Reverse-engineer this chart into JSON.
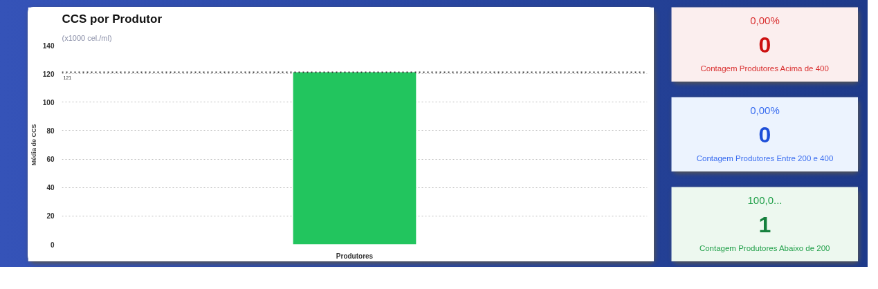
{
  "chart_data": [
    {
      "type": "bar",
      "title": "CCS por Produtor",
      "subtitle": "(x1000 cel./ml)",
      "ylabel": "Média de CCS",
      "categories": [
        "Produtores"
      ],
      "values": [
        121
      ],
      "color": "#22c55e",
      "ylim": [
        0,
        140
      ],
      "yticks": [
        0,
        20,
        40,
        60,
        80,
        100,
        120,
        140
      ],
      "grid": "y",
      "ref_lines": [
        {
          "axis": "y",
          "value": 121,
          "label": "121",
          "color": "#333333",
          "line_style": "dotted"
        }
      ]
    },
    {
      "type": "other",
      "annotations": [
        "0,00%",
        "0",
        "Contagem Produtores Acima de 400"
      ]
    },
    {
      "type": "other",
      "annotations": [
        "0,00%",
        "0",
        "Contagem Produtores Entre 200 e 400"
      ]
    },
    {
      "type": "other",
      "annotations": [
        "100,0...",
        "1",
        "Contagem Produtores Abaixo de 200"
      ]
    }
  ]
}
